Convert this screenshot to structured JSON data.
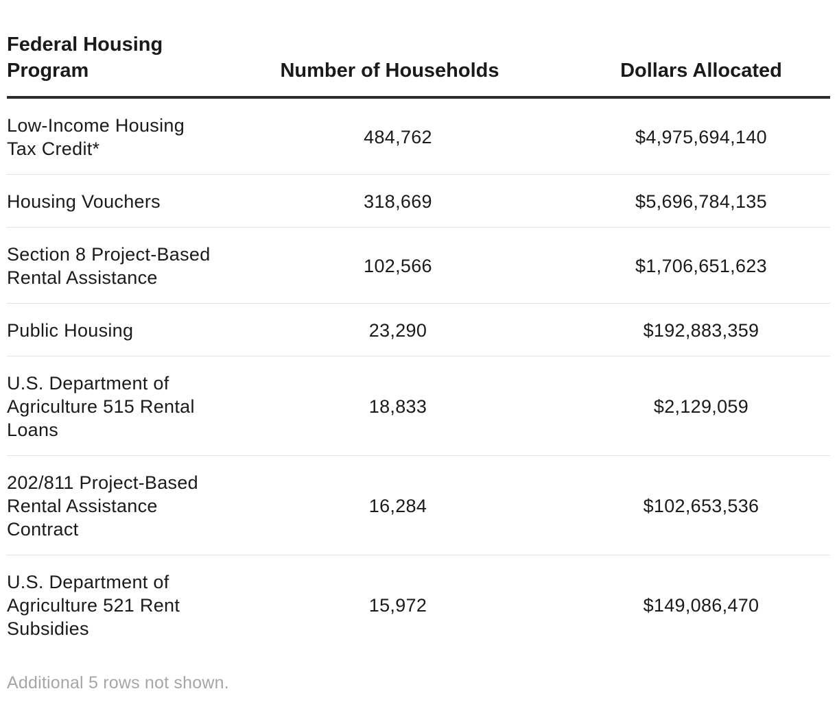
{
  "chart_data": {
    "type": "table",
    "columns": [
      "Federal Housing Program",
      "Number of Households",
      "Dollars Allocated"
    ],
    "rows": [
      [
        "Low-Income Housing Tax Credit*",
        "484,762",
        "$4,975,694,140"
      ],
      [
        "Housing Vouchers",
        "318,669",
        "$5,696,784,135"
      ],
      [
        "Section 8 Project-Based Rental Assistance",
        "102,566",
        "$1,706,651,623"
      ],
      [
        "Public Housing",
        "23,290",
        "$192,883,359"
      ],
      [
        "U.S. Department of Agriculture 515 Rental Loans",
        "18,833",
        "$2,129,059"
      ],
      [
        "202/811 Project-Based Rental Assistance Contract",
        "16,284",
        "$102,653,536"
      ],
      [
        "U.S. Department of Agriculture 521 Rent Subsidies",
        "15,972",
        "$149,086,470"
      ]
    ],
    "footnote": "Additional 5 rows not shown."
  }
}
